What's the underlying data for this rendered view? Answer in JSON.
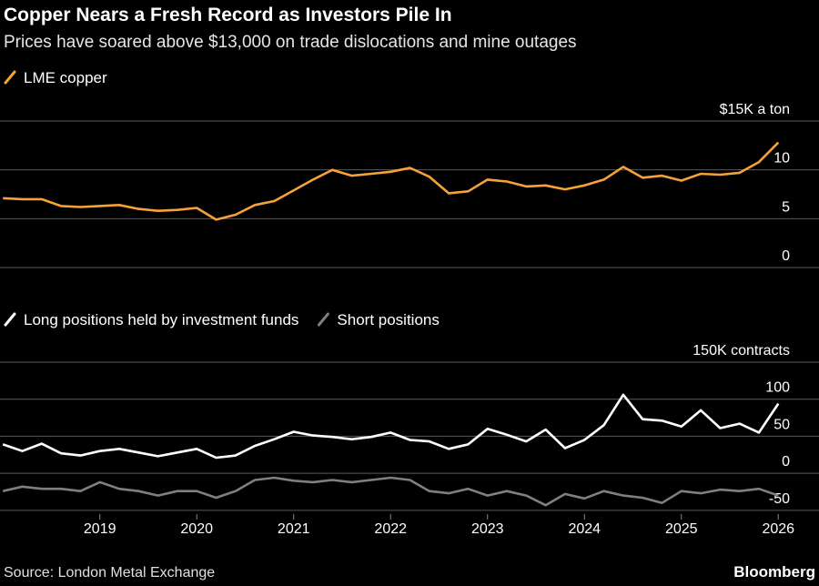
{
  "title": "Copper Nears a Fresh Record as Investors Pile In",
  "subtitle": "Prices have soared above $13,000 on trade dislocations and mine outages",
  "source": "Source: London Metal Exchange",
  "brand": "Bloomberg",
  "chart_data": [
    {
      "type": "line",
      "x": [
        2018.0,
        2018.2,
        2018.4,
        2018.6,
        2018.8,
        2019.0,
        2019.2,
        2019.4,
        2019.6,
        2019.8,
        2020.0,
        2020.2,
        2020.4,
        2020.6,
        2020.8,
        2021.0,
        2021.2,
        2021.4,
        2021.6,
        2021.8,
        2022.0,
        2022.2,
        2022.4,
        2022.6,
        2022.8,
        2023.0,
        2023.2,
        2023.4,
        2023.6,
        2023.8,
        2024.0,
        2024.2,
        2024.4,
        2024.6,
        2024.8,
        2025.0,
        2025.2,
        2025.4,
        2025.6,
        2025.8,
        2026.0
      ],
      "xlim": [
        2017.97,
        2026.42
      ],
      "ylim": [
        0,
        15
      ],
      "yticks": [
        0,
        5,
        10,
        {
          "value": 15,
          "label": "$15K a ton"
        }
      ],
      "grid": true,
      "series": [
        {
          "name": "LME copper",
          "color": "#f6a13a",
          "values": [
            7.1,
            7.0,
            7.0,
            6.3,
            6.2,
            6.3,
            6.4,
            6.0,
            5.8,
            5.9,
            6.1,
            4.9,
            5.4,
            6.4,
            6.8,
            7.9,
            9.0,
            10.0,
            9.4,
            9.6,
            9.8,
            10.2,
            9.3,
            7.6,
            7.8,
            9.0,
            8.8,
            8.3,
            8.4,
            8.0,
            8.4,
            9.0,
            10.3,
            9.2,
            9.4,
            8.9,
            9.6,
            9.5,
            9.7,
            10.8,
            12.8
          ]
        }
      ]
    },
    {
      "type": "line",
      "x": [
        2018.0,
        2018.2,
        2018.4,
        2018.6,
        2018.8,
        2019.0,
        2019.2,
        2019.4,
        2019.6,
        2019.8,
        2020.0,
        2020.2,
        2020.4,
        2020.6,
        2020.8,
        2021.0,
        2021.2,
        2021.4,
        2021.6,
        2021.8,
        2022.0,
        2022.2,
        2022.4,
        2022.6,
        2022.8,
        2023.0,
        2023.2,
        2023.4,
        2023.6,
        2023.8,
        2024.0,
        2024.2,
        2024.4,
        2024.6,
        2024.8,
        2025.0,
        2025.2,
        2025.4,
        2025.6,
        2025.8,
        2026.0
      ],
      "xlim": [
        2017.97,
        2026.42
      ],
      "xticks": [
        2019,
        2020,
        2021,
        2022,
        2023,
        2024,
        2025,
        2026
      ],
      "ylim": [
        -60,
        150
      ],
      "yticks": [
        -50,
        0,
        50,
        100,
        {
          "value": 150,
          "label": "150K contracts"
        }
      ],
      "grid": true,
      "series": [
        {
          "name": "Long positions held by investment funds",
          "color": "#ffffff",
          "values": [
            39,
            30,
            40,
            27,
            24,
            30,
            33,
            28,
            23,
            28,
            33,
            21,
            24,
            37,
            46,
            56,
            51,
            49,
            46,
            49,
            55,
            45,
            43,
            33,
            39,
            60,
            52,
            43,
            59,
            34,
            45,
            65,
            106,
            73,
            71,
            63,
            85,
            61,
            67,
            55,
            94
          ]
        },
        {
          "name": "Short positions",
          "color": "#7f7f7f",
          "values": [
            -24,
            -18,
            -21,
            -21,
            -24,
            -12,
            -21,
            -24,
            -30,
            -24,
            -24,
            -33,
            -24,
            -9,
            -6,
            -10,
            -12,
            -9,
            -12,
            -9,
            -6,
            -9,
            -24,
            -27,
            -21,
            -30,
            -24,
            -30,
            -43,
            -28,
            -34,
            -24,
            -30,
            -33,
            -40,
            -24,
            -27,
            -22,
            -24,
            -21,
            -30
          ]
        }
      ]
    }
  ]
}
